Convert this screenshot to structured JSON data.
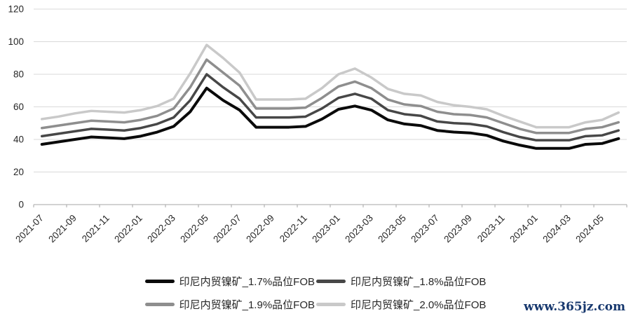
{
  "watermark": "www.365jz.com",
  "colors": {
    "background": "#ffffff",
    "gridline": "#d9d9d9",
    "axis": "#a6a6a6",
    "label_text": "#262626",
    "watermark_blue": "#17386e"
  },
  "chart_data": {
    "type": "line",
    "title": "",
    "xlabel": "",
    "ylabel": "",
    "ylim": [
      0,
      120
    ],
    "y_ticks": [
      0,
      20,
      40,
      60,
      80,
      100,
      120
    ],
    "grid": true,
    "legend_position": "bottom",
    "x": [
      "2021-07",
      "2021-08",
      "2021-09",
      "2021-10",
      "2021-11",
      "2021-12",
      "2022-01",
      "2022-02",
      "2022-03",
      "2022-04",
      "2022-05",
      "2022-06",
      "2022-07",
      "2022-08",
      "2022-09",
      "2022-10",
      "2022-11",
      "2022-12",
      "2023-01",
      "2023-02",
      "2023-03",
      "2023-04",
      "2023-05",
      "2023-06",
      "2023-07",
      "2023-08",
      "2023-09",
      "2023-10",
      "2023-11",
      "2023-12",
      "2024-01",
      "2024-02",
      "2024-03",
      "2024-04",
      "2024-05",
      "2024-06"
    ],
    "x_tick_labels": [
      "2021-07",
      "2021-09",
      "2021-11",
      "2022-01",
      "2022-03",
      "2022-05",
      "2022-07",
      "2022-09",
      "2022-11",
      "2023-01",
      "2023-03",
      "2023-05",
      "2023-07",
      "2023-09",
      "2023-11",
      "2024-01",
      "2024-03",
      "2024-05"
    ],
    "series": [
      {
        "key": "1.7",
        "name": "印尼内贸镍矿_1.7%品位FOB",
        "color": "#0a0a0a",
        "values": [
          37,
          38.5,
          40,
          41.5,
          41,
          40.5,
          42,
          44.5,
          48,
          57,
          71.5,
          64,
          58,
          47.5,
          47.5,
          47.5,
          48,
          52.5,
          58.5,
          60.5,
          58,
          52,
          49.5,
          48.5,
          45.5,
          44.5,
          44,
          42.5,
          39,
          36.5,
          34.5,
          34.5,
          34.5,
          37,
          37.5,
          40.5
        ]
      },
      {
        "key": "1.8",
        "name": "印尼内贸镍矿_1.8%品位FOB",
        "color": "#474747",
        "values": [
          42,
          43.5,
          45,
          46.5,
          46,
          45.5,
          47,
          49.5,
          53.5,
          64,
          80,
          72,
          65,
          53.5,
          53.5,
          53.5,
          54,
          59,
          65.5,
          68,
          65,
          58,
          55.5,
          54.5,
          51,
          50,
          49.5,
          48,
          44.5,
          41.5,
          39.5,
          39.5,
          39.5,
          42,
          42.5,
          45.5
        ]
      },
      {
        "key": "1.9",
        "name": "印尼内贸镍矿_1.9%品位FOB",
        "color": "#8e8e8e",
        "values": [
          47,
          48.5,
          50,
          51.5,
          51,
          50.5,
          52,
          54.5,
          59,
          72,
          89,
          81,
          73,
          59,
          59,
          59,
          59.5,
          65.5,
          72.5,
          75.5,
          71.5,
          64.5,
          61.5,
          60.5,
          57,
          55.5,
          55,
          53.5,
          50,
          46.5,
          44,
          44,
          44,
          46.5,
          47.5,
          50.5
        ]
      },
      {
        "key": "2.0",
        "name": "印尼内贸镍矿_2.0%品位FOB",
        "color": "#c9c9c9",
        "values": [
          52.5,
          54,
          56,
          57.5,
          57,
          56.5,
          58,
          60.5,
          65,
          80.5,
          98,
          90,
          81,
          64.5,
          64.5,
          64.5,
          65,
          71.5,
          80,
          83.5,
          78,
          71,
          68,
          67,
          63,
          61,
          60,
          58.5,
          54.5,
          51,
          47.5,
          47.5,
          47.5,
          50.5,
          52,
          56.5
        ]
      }
    ]
  }
}
